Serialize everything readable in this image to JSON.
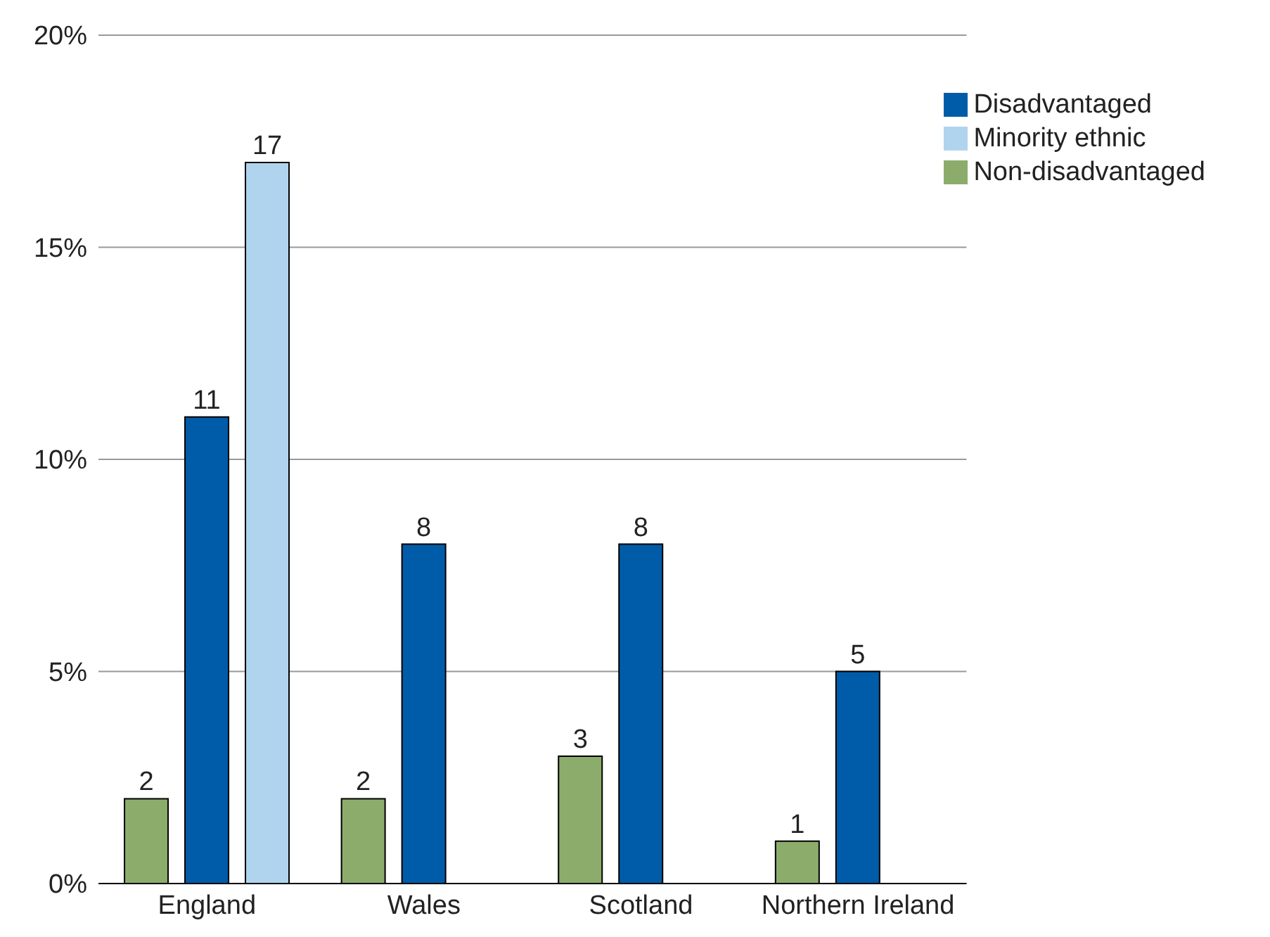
{
  "chart_data": {
    "type": "bar",
    "categories": [
      "England",
      "Wales",
      "Scotland",
      "Northern Ireland"
    ],
    "series": [
      {
        "name": "Non-disadvantaged",
        "color": "#8cac6c",
        "values": [
          2,
          2,
          3,
          1
        ]
      },
      {
        "name": "Disadvantaged",
        "color": "#005ca8",
        "values": [
          11,
          8,
          8,
          5
        ]
      },
      {
        "name": "Minority ethnic",
        "color": "#b0d4ee",
        "values": [
          17,
          null,
          null,
          null
        ]
      }
    ],
    "ylim": [
      0,
      20
    ],
    "yticks": [
      {
        "value": 0,
        "label": "0%"
      },
      {
        "value": 5,
        "label": "5%"
      },
      {
        "value": 10,
        "label": "10%"
      },
      {
        "value": 15,
        "label": "15%"
      },
      {
        "value": 20,
        "label": "20%"
      }
    ],
    "grid": "y",
    "legend": "top right",
    "data_labels": true
  }
}
